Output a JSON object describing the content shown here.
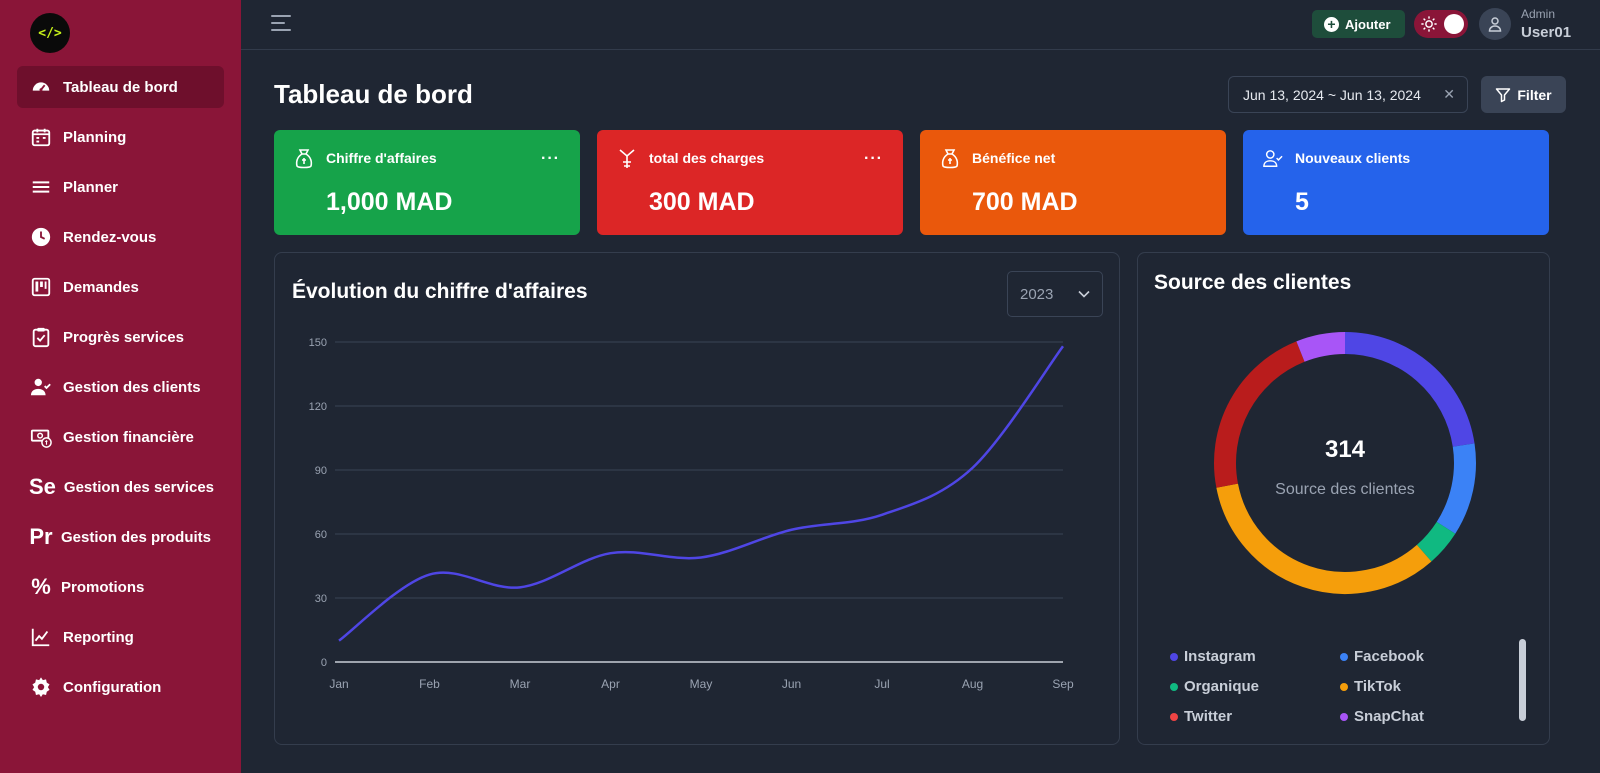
{
  "logo": {
    "glyph": "</>"
  },
  "sidebar": {
    "items": [
      {
        "label": "Tableau de bord",
        "icon": "gauge-icon",
        "active": true
      },
      {
        "label": "Planning",
        "icon": "calendar-icon"
      },
      {
        "label": "Planner",
        "icon": "stack-icon"
      },
      {
        "label": "Rendez-vous",
        "icon": "clock-icon"
      },
      {
        "label": "Demandes",
        "icon": "kanban-icon"
      },
      {
        "label": "Progrès services",
        "icon": "clipboard-check-icon"
      },
      {
        "label": "Gestion des clients",
        "icon": "user-check-icon"
      },
      {
        "label": "Gestion financière",
        "icon": "money-icon"
      },
      {
        "label": "Gestion des services",
        "icon_text": "Se"
      },
      {
        "label": "Gestion des produits",
        "icon_text": "Pr"
      },
      {
        "label": "Promotions",
        "icon_text": "%"
      },
      {
        "label": "Reporting",
        "icon": "line-chart-icon"
      },
      {
        "label": "Configuration",
        "icon": "gear-icon"
      }
    ]
  },
  "topbar": {
    "add_label": "Ajouter",
    "user_role": "Admin",
    "user_name": "User01"
  },
  "header": {
    "title": "Tableau de bord",
    "date_range": "Jun 13, 2024 ~ Jun 13, 2024",
    "filter_label": "Filter"
  },
  "kpis": [
    {
      "label": "Chiffre d'affaires",
      "value": "1,000 MAD",
      "color": "#16a34a",
      "more": "···"
    },
    {
      "label": "total des charges",
      "value": "300 MAD",
      "color": "#dc2626",
      "more": "···"
    },
    {
      "label": "Bénéfice net",
      "value": "700 MAD",
      "color": "#ea580c"
    },
    {
      "label": "Nouveaux clients",
      "value": "5",
      "color": "#2563eb"
    }
  ],
  "revenue_panel": {
    "title": "Évolution du chiffre d'affaires",
    "year": "2023"
  },
  "source_panel": {
    "title": "Source des clientes",
    "center_value": "314",
    "center_label": "Source des clientes"
  },
  "chart_data": [
    {
      "type": "line",
      "title": "Évolution du chiffre d'affaires",
      "x": [
        "Jan",
        "Feb",
        "Mar",
        "Apr",
        "May",
        "Jun",
        "Jul",
        "Aug",
        "Sep"
      ],
      "series": [
        {
          "values": [
            10,
            41,
            35,
            51,
            49,
            62,
            69,
            91,
            148
          ],
          "color": "#4f46e5"
        }
      ],
      "ylim": [
        0,
        150
      ],
      "yticks": [
        0,
        30,
        60,
        90,
        120,
        150
      ],
      "grid": true
    },
    {
      "type": "pie",
      "title": "Source des clientes",
      "donut": true,
      "categories": [
        "Instagram",
        "Facebook",
        "Organique",
        "TikTok",
        "Twitter",
        "SnapChat"
      ],
      "values": [
        71,
        36,
        14,
        105,
        69,
        19
      ],
      "colors": [
        "#4f46e5",
        "#3b82f6",
        "#10b981",
        "#f59e0b",
        "#b91c1c",
        "#a855f7"
      ],
      "legend_colors": [
        "#4f46e5",
        "#3b82f6",
        "#10b981",
        "#f59e0b",
        "#ef4444",
        "#a855f7"
      ],
      "legend": "bottom"
    }
  ]
}
